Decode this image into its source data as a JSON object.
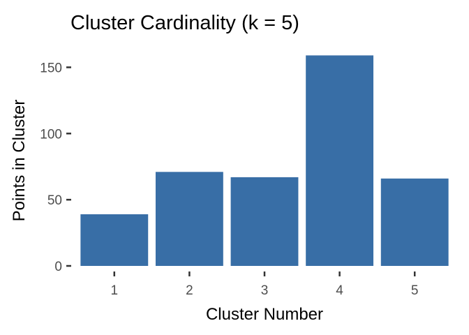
{
  "chart_data": {
    "type": "bar",
    "title": "Cluster Cardinality (k = 5)",
    "xlabel": "Cluster Number",
    "ylabel": "Points in Cluster",
    "categories": [
      "1",
      "2",
      "3",
      "4",
      "5"
    ],
    "values": [
      39,
      71,
      67,
      159,
      66
    ],
    "ylim": [
      0,
      165
    ],
    "yticks": [
      0,
      50,
      100,
      150
    ],
    "grid": false,
    "legend": "none",
    "bar_color": "#386ea6",
    "background_color": "#ffffff"
  }
}
